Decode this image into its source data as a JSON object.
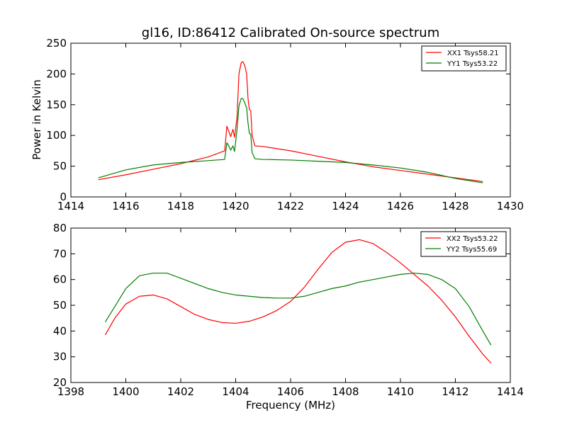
{
  "title": "gl16, ID:86412 Calibrated On-source spectrum",
  "chart_data": [
    {
      "type": "line",
      "title": "gl16, ID:86412 Calibrated On-source spectrum",
      "xlabel": "",
      "ylabel": "Power in Kelvin",
      "xlim": [
        1414,
        1430
      ],
      "ylim": [
        0,
        250
      ],
      "xticks": [
        "1414",
        "1416",
        "1418",
        "1420",
        "1422",
        "1424",
        "1426",
        "1428",
        "1430"
      ],
      "yticks": [
        "0",
        "50",
        "100",
        "150",
        "200",
        "250"
      ],
      "grid": false,
      "legend_position": "top-right",
      "series": [
        {
          "name": "XX1 Tsys58.21",
          "color": "#ff0000",
          "points": [
            [
              1415.0,
              28
            ],
            [
              1416.0,
              36
            ],
            [
              1417.0,
              45
            ],
            [
              1418.0,
              54
            ],
            [
              1419.0,
              65
            ],
            [
              1419.6,
              75
            ],
            [
              1419.68,
              115
            ],
            [
              1419.75,
              107
            ],
            [
              1419.82,
              98
            ],
            [
              1419.9,
              110
            ],
            [
              1419.96,
              97
            ],
            [
              1420.05,
              130
            ],
            [
              1420.12,
              200
            ],
            [
              1420.2,
              218
            ],
            [
              1420.26,
              220
            ],
            [
              1420.33,
              214
            ],
            [
              1420.4,
              200
            ],
            [
              1420.45,
              160
            ],
            [
              1420.5,
              142
            ],
            [
              1420.55,
              140
            ],
            [
              1420.6,
              100
            ],
            [
              1420.7,
              83
            ],
            [
              1421.0,
              82
            ],
            [
              1422.0,
              75
            ],
            [
              1423.0,
              66
            ],
            [
              1424.0,
              57
            ],
            [
              1425.0,
              49
            ],
            [
              1426.0,
              43
            ],
            [
              1427.0,
              37
            ],
            [
              1428.0,
              31
            ],
            [
              1429.0,
              25
            ]
          ]
        },
        {
          "name": "YY1 Tsys53.22",
          "color": "#007f00",
          "points": [
            [
              1415.0,
              31
            ],
            [
              1416.0,
              44
            ],
            [
              1417.0,
              52
            ],
            [
              1418.0,
              56
            ],
            [
              1419.0,
              59
            ],
            [
              1419.6,
              61
            ],
            [
              1419.68,
              88
            ],
            [
              1419.75,
              83
            ],
            [
              1419.82,
              76
            ],
            [
              1419.9,
              83
            ],
            [
              1419.96,
              74
            ],
            [
              1420.05,
              110
            ],
            [
              1420.12,
              148
            ],
            [
              1420.2,
              160
            ],
            [
              1420.26,
              160
            ],
            [
              1420.33,
              153
            ],
            [
              1420.4,
              145
            ],
            [
              1420.45,
              120
            ],
            [
              1420.5,
              103
            ],
            [
              1420.55,
              102
            ],
            [
              1420.6,
              72
            ],
            [
              1420.7,
              62
            ],
            [
              1421.0,
              61
            ],
            [
              1422.0,
              60
            ],
            [
              1423.0,
              58
            ],
            [
              1424.0,
              56
            ],
            [
              1425.0,
              52
            ],
            [
              1426.0,
              47
            ],
            [
              1427.0,
              40
            ],
            [
              1428.0,
              30
            ],
            [
              1429.0,
              23
            ]
          ]
        }
      ]
    },
    {
      "type": "line",
      "title": "",
      "xlabel": "Frequency (MHz)",
      "ylabel": "",
      "xlim": [
        1398,
        1414
      ],
      "ylim": [
        20,
        80
      ],
      "xticks": [
        "1398",
        "1400",
        "1402",
        "1404",
        "1406",
        "1408",
        "1410",
        "1412",
        "1414"
      ],
      "yticks": [
        "20",
        "30",
        "40",
        "50",
        "60",
        "70",
        "80"
      ],
      "grid": false,
      "legend_position": "top-right",
      "series": [
        {
          "name": "XX2 Tsys53.22",
          "color": "#ff0000",
          "points": [
            [
              1399.25,
              38.5
            ],
            [
              1399.6,
              45
            ],
            [
              1400.0,
              50.5
            ],
            [
              1400.5,
              53.5
            ],
            [
              1401.0,
              54
            ],
            [
              1401.5,
              52.5
            ],
            [
              1402.0,
              49.5
            ],
            [
              1402.5,
              46.5
            ],
            [
              1403.0,
              44.5
            ],
            [
              1403.5,
              43.3
            ],
            [
              1404.0,
              43
            ],
            [
              1404.5,
              43.8
            ],
            [
              1405.0,
              45.5
            ],
            [
              1405.5,
              48
            ],
            [
              1406.0,
              51.5
            ],
            [
              1406.5,
              57
            ],
            [
              1407.0,
              64
            ],
            [
              1407.5,
              70.5
            ],
            [
              1408.0,
              74.5
            ],
            [
              1408.5,
              75.5
            ],
            [
              1409.0,
              74
            ],
            [
              1409.5,
              70.5
            ],
            [
              1410.0,
              66.5
            ],
            [
              1410.5,
              62
            ],
            [
              1411.0,
              57.5
            ],
            [
              1411.5,
              52
            ],
            [
              1412.0,
              45.5
            ],
            [
              1412.5,
              38
            ],
            [
              1413.0,
              31
            ],
            [
              1413.3,
              27.5
            ]
          ]
        },
        {
          "name": "YY2 Tsys55.69",
          "color": "#007f00",
          "points": [
            [
              1399.25,
              43.5
            ],
            [
              1399.6,
              49.5
            ],
            [
              1400.0,
              56.5
            ],
            [
              1400.5,
              61.5
            ],
            [
              1401.0,
              62.5
            ],
            [
              1401.5,
              62.5
            ],
            [
              1402.0,
              60.5
            ],
            [
              1402.5,
              58.5
            ],
            [
              1403.0,
              56.5
            ],
            [
              1403.5,
              55
            ],
            [
              1404.0,
              54
            ],
            [
              1404.5,
              53.5
            ],
            [
              1405.0,
              53
            ],
            [
              1405.5,
              52.8
            ],
            [
              1406.0,
              52.8
            ],
            [
              1406.5,
              53.5
            ],
            [
              1407.0,
              55
            ],
            [
              1407.5,
              56.5
            ],
            [
              1408.0,
              57.5
            ],
            [
              1408.5,
              59
            ],
            [
              1409.0,
              60
            ],
            [
              1409.5,
              61
            ],
            [
              1410.0,
              62
            ],
            [
              1410.5,
              62.5
            ],
            [
              1411.0,
              62
            ],
            [
              1411.5,
              60
            ],
            [
              1412.0,
              56.5
            ],
            [
              1412.5,
              49.5
            ],
            [
              1413.0,
              40
            ],
            [
              1413.3,
              34.5
            ]
          ]
        }
      ]
    }
  ]
}
